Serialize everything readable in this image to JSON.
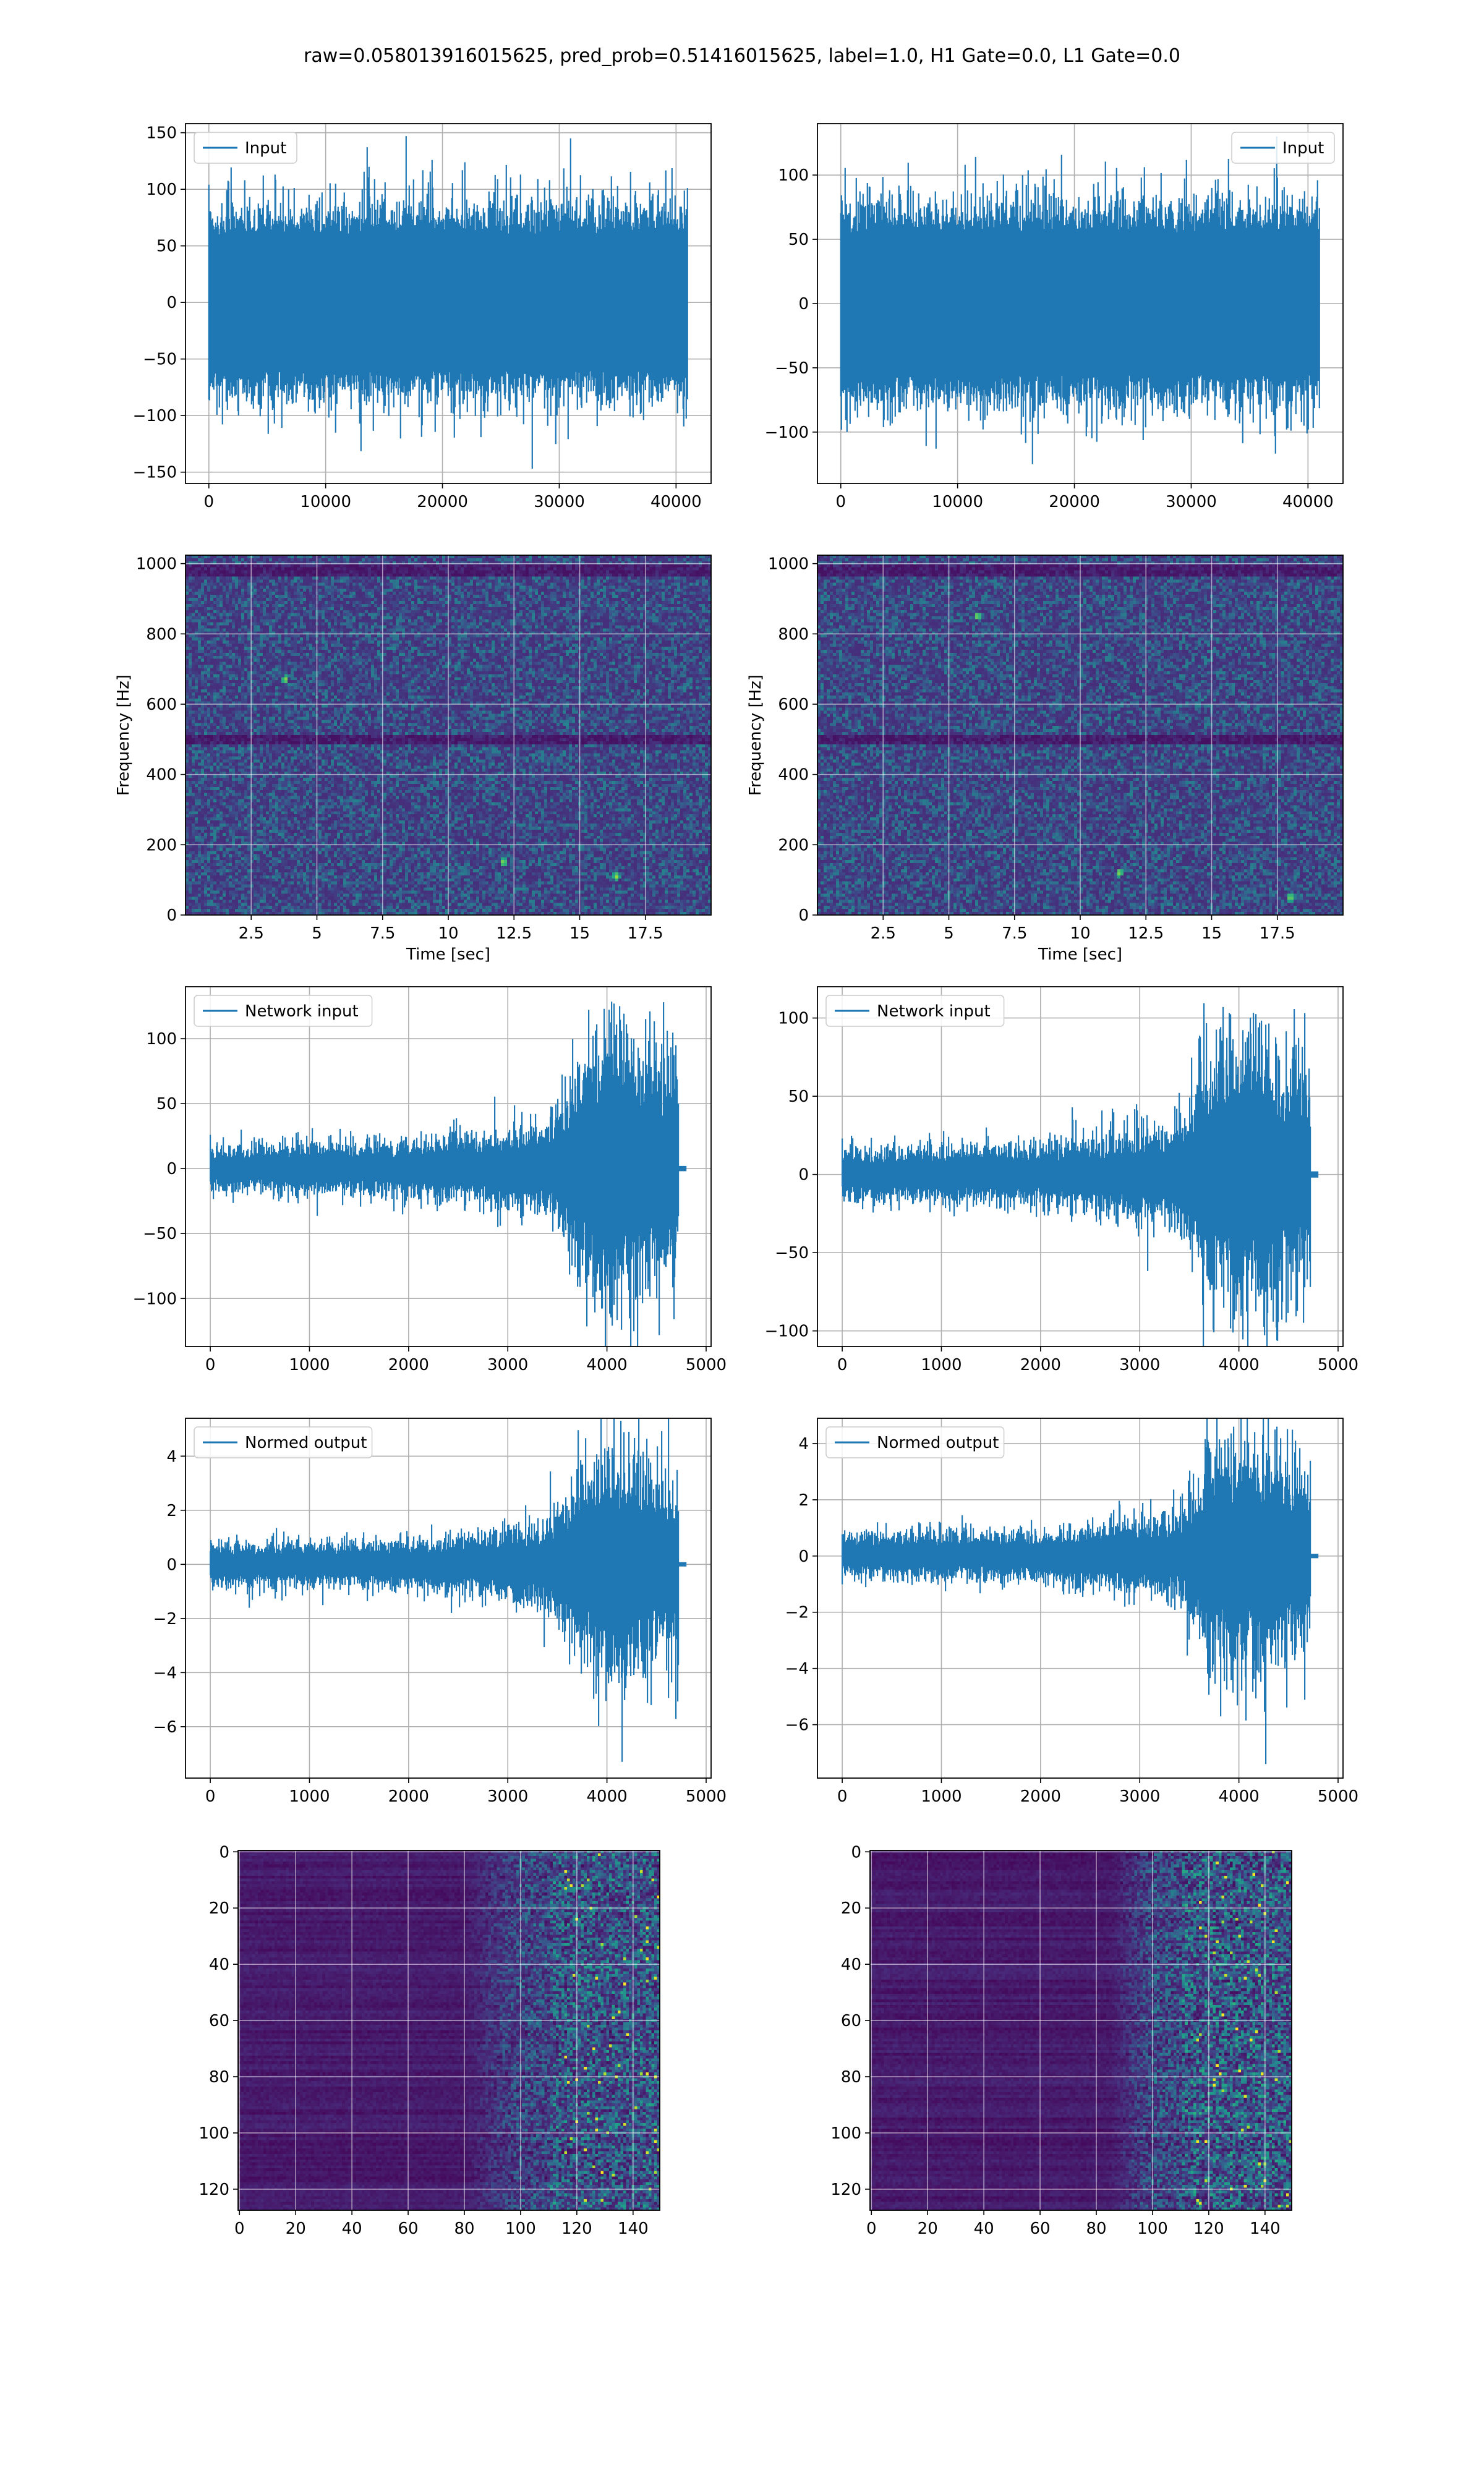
{
  "figure": {
    "title": "raw=0.058013916015625, pred_prob=0.51416015625, label=1.0, H1 Gate=0.0, L1 Gate=0.0"
  },
  "colors": {
    "line": "#1f77b4",
    "grid": "#b0b0b0",
    "viridis": [
      "#440154",
      "#482878",
      "#3e4989",
      "#31688e",
      "#26828e",
      "#1f9e89",
      "#35b779",
      "#6ece58",
      "#b5de2b",
      "#fde725"
    ]
  },
  "chart_data": [
    {
      "id": "input-left",
      "type": "line",
      "grid": true,
      "legend": {
        "label": "Input",
        "loc": "upper-left"
      },
      "xlim": [
        -2000,
        43000
      ],
      "ylim": [
        -160,
        158
      ],
      "xticks": [
        0,
        10000,
        20000,
        30000,
        40000
      ],
      "yticks": [
        -150,
        -100,
        -50,
        0,
        50,
        100,
        150
      ],
      "signal": {
        "n_samples": 40960,
        "envelope": [
          [
            0,
            75
          ],
          [
            1,
            75
          ]
        ],
        "core": 60,
        "peak_max": 147,
        "peak_min": -147
      }
    },
    {
      "id": "input-right",
      "type": "line",
      "grid": true,
      "legend": {
        "label": "Input",
        "loc": "upper-right"
      },
      "xlim": [
        -2000,
        43000
      ],
      "ylim": [
        -140,
        140
      ],
      "xticks": [
        0,
        10000,
        20000,
        30000,
        40000
      ],
      "yticks": [
        -100,
        -50,
        0,
        50,
        100
      ],
      "signal": {
        "n_samples": 40960,
        "envelope": [
          [
            0,
            70
          ],
          [
            1,
            70
          ]
        ],
        "core": 55,
        "peak_max": 130,
        "peak_min": -125
      }
    },
    {
      "id": "spectrogram-left",
      "type": "heatmap",
      "grid": true,
      "xlabel": "Time [sec]",
      "ylabel": "Frequency [Hz]",
      "xlim": [
        0,
        20
      ],
      "ylim": [
        0,
        1024
      ],
      "xticks": [
        2.5,
        5.0,
        7.5,
        10.0,
        12.5,
        15.0,
        17.5
      ],
      "yticks": [
        0,
        200,
        400,
        600,
        800,
        1000
      ],
      "colormap": "viridis",
      "texture": {
        "mode": "spectrogram",
        "base": 0.13,
        "noise": 0.16,
        "dark_bands_hz": [
          500,
          980
        ],
        "hot_spots": [
          {
            "t": 3.8,
            "f": 670
          },
          {
            "t": 16.4,
            "f": 110
          },
          {
            "t": 12.1,
            "f": 150
          }
        ]
      }
    },
    {
      "id": "spectrogram-right",
      "type": "heatmap",
      "grid": true,
      "xlabel": "Time [sec]",
      "ylabel": "Frequency [Hz]",
      "xlim": [
        0,
        20
      ],
      "ylim": [
        0,
        1024
      ],
      "xticks": [
        2.5,
        5.0,
        7.5,
        10.0,
        12.5,
        15.0,
        17.5
      ],
      "yticks": [
        0,
        200,
        400,
        600,
        800,
        1000
      ],
      "colormap": "viridis",
      "texture": {
        "mode": "spectrogram",
        "base": 0.13,
        "noise": 0.16,
        "dark_bands_hz": [
          500,
          980
        ],
        "hot_spots": [
          {
            "t": 6.1,
            "f": 850
          },
          {
            "t": 18.0,
            "f": 50
          },
          {
            "t": 11.5,
            "f": 120
          }
        ]
      }
    },
    {
      "id": "network-input-left",
      "type": "line",
      "grid": true,
      "legend": {
        "label": "Network input",
        "loc": "upper-left"
      },
      "xlim": [
        -250,
        5050
      ],
      "ylim": [
        -137,
        140
      ],
      "xticks": [
        0,
        1000,
        2000,
        3000,
        4000,
        5000
      ],
      "yticks": [
        -100,
        -50,
        0,
        50,
        100
      ],
      "signal": {
        "n_samples": 4800,
        "end": 4720,
        "tail_end": 4800,
        "tail_amp": 2,
        "envelope": [
          [
            0,
            14
          ],
          [
            2000,
            16
          ],
          [
            2600,
            20
          ],
          [
            3400,
            28
          ],
          [
            3700,
            62
          ],
          [
            4000,
            88
          ],
          [
            4400,
            74
          ],
          [
            4720,
            62
          ]
        ],
        "peak_max": 127,
        "peak_min": -124
      }
    },
    {
      "id": "network-input-right",
      "type": "line",
      "grid": true,
      "legend": {
        "label": "Network input",
        "loc": "upper-left"
      },
      "xlim": [
        -250,
        5050
      ],
      "ylim": [
        -110,
        120
      ],
      "xticks": [
        0,
        1000,
        2000,
        3000,
        4000,
        5000
      ],
      "yticks": [
        -100,
        -50,
        0,
        50,
        100
      ],
      "signal": {
        "n_samples": 4800,
        "end": 4720,
        "tail_end": 4800,
        "tail_amp": 2,
        "envelope": [
          [
            0,
            13
          ],
          [
            2000,
            15
          ],
          [
            2600,
            18
          ],
          [
            3400,
            26
          ],
          [
            3700,
            55
          ],
          [
            4000,
            70
          ],
          [
            4400,
            62
          ],
          [
            4720,
            50
          ]
        ],
        "peak_max": 107,
        "peak_min": -101
      }
    },
    {
      "id": "normed-output-left",
      "type": "line",
      "grid": true,
      "legend": {
        "label": "Normed output",
        "loc": "upper-left"
      },
      "xlim": [
        -250,
        5050
      ],
      "ylim": [
        -7.9,
        5.4
      ],
      "xticks": [
        0,
        1000,
        2000,
        3000,
        4000,
        5000
      ],
      "yticks": [
        -6,
        -4,
        -2,
        0,
        2,
        4
      ],
      "signal": {
        "n_samples": 4800,
        "end": 4720,
        "tail_end": 4800,
        "tail_amp": 0.08,
        "envelope": [
          [
            0,
            0.6
          ],
          [
            2000,
            0.7
          ],
          [
            2600,
            0.85
          ],
          [
            3400,
            1.2
          ],
          [
            3700,
            2.6
          ],
          [
            4000,
            3.5
          ],
          [
            4400,
            3.0
          ],
          [
            4720,
            2.5
          ]
        ],
        "peak_max": 4.9,
        "peak_min": -7.3
      }
    },
    {
      "id": "normed-output-right",
      "type": "line",
      "grid": true,
      "legend": {
        "label": "Normed output",
        "loc": "upper-left"
      },
      "xlim": [
        -250,
        5050
      ],
      "ylim": [
        -7.9,
        4.9
      ],
      "xticks": [
        0,
        1000,
        2000,
        3000,
        4000,
        5000
      ],
      "yticks": [
        -6,
        -4,
        -2,
        0,
        2,
        4
      ],
      "signal": {
        "n_samples": 4800,
        "end": 4720,
        "tail_end": 4800,
        "tail_amp": 0.08,
        "envelope": [
          [
            0,
            0.6
          ],
          [
            2000,
            0.7
          ],
          [
            2600,
            0.85
          ],
          [
            3400,
            1.2
          ],
          [
            3700,
            2.8
          ],
          [
            4000,
            3.3
          ],
          [
            4400,
            2.9
          ],
          [
            4720,
            2.4
          ]
        ],
        "peak_max": 4.6,
        "peak_min": -7.4
      }
    },
    {
      "id": "image-left",
      "type": "heatmap",
      "grid": true,
      "xlim": [
        -0.5,
        149.5
      ],
      "ylim": [
        127.5,
        -0.5
      ],
      "xticks": [
        0,
        20,
        40,
        60,
        80,
        100,
        120,
        140
      ],
      "yticks": [
        0,
        20,
        40,
        60,
        80,
        100,
        120
      ],
      "colormap": "viridis",
      "texture": {
        "mode": "image",
        "cols": 150,
        "rows": 128,
        "base": 0.07,
        "rise_start": 80,
        "rise_mid": 100,
        "bright": 0.35
      }
    },
    {
      "id": "image-right",
      "type": "heatmap",
      "grid": true,
      "xlim": [
        -0.5,
        149.5
      ],
      "ylim": [
        127.5,
        -0.5
      ],
      "xticks": [
        0,
        20,
        40,
        60,
        80,
        100,
        120,
        140
      ],
      "yticks": [
        0,
        20,
        40,
        60,
        80,
        100,
        120
      ],
      "colormap": "viridis",
      "texture": {
        "mode": "image",
        "cols": 150,
        "rows": 128,
        "base": 0.07,
        "rise_start": 85,
        "rise_mid": 100,
        "bright": 0.38
      }
    }
  ]
}
